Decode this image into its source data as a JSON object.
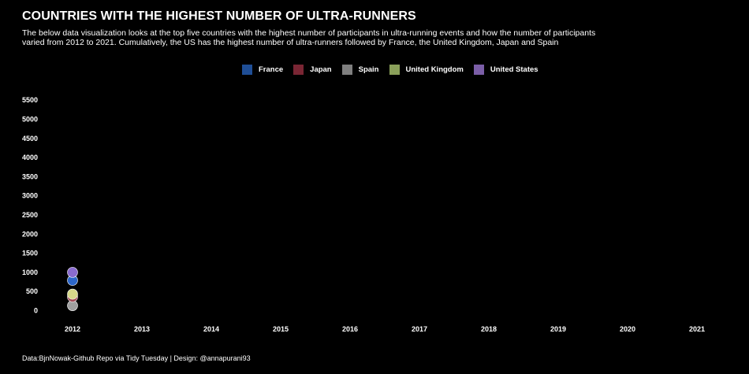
{
  "header": {
    "title": "COUNTRIES WITH THE HIGHEST NUMBER OF ULTRA-RUNNERS",
    "subtitle_line1": "The below data visualization looks at the top five countries with the highest number of participants in ultra-running events and how the number of participants",
    "subtitle_line2": "varied from 2012 to 2021. Cumulatively, the US has the highest number of ultra-runners followed by France, the United Kingdom, Japan and Spain"
  },
  "caption": "Data:BjnNowak-Github Repo via Tidy Tuesday | Design: @annapurani93",
  "legend": [
    {
      "label": "France",
      "color": "#1f4e96"
    },
    {
      "label": "Japan",
      "color": "#7a2634"
    },
    {
      "label": "Spain",
      "color": "#7f7f7f"
    },
    {
      "label": "United Kingdom",
      "color": "#8aa05a"
    },
    {
      "label": "United States",
      "color": "#7b5ea7"
    }
  ],
  "chart_data": {
    "type": "scatter",
    "title": "COUNTRIES WITH THE HIGHEST NUMBER OF ULTRA-RUNNERS",
    "xlabel": "",
    "ylabel": "",
    "x": [
      2012,
      2013,
      2014,
      2015,
      2016,
      2017,
      2018,
      2019,
      2020,
      2021
    ],
    "xticks": [
      "2012",
      "2013",
      "2014",
      "2015",
      "2016",
      "2017",
      "2018",
      "2019",
      "2020",
      "2021"
    ],
    "yticks": [
      0,
      500,
      1000,
      1500,
      2000,
      2500,
      3000,
      3500,
      4000,
      4500,
      5000,
      5500
    ],
    "ylim": [
      -100,
      5700
    ],
    "grid": false,
    "legend_position": "top",
    "points": [
      {
        "series": "United States",
        "x": 2012,
        "y": 990,
        "color": "#8a6ccf"
      },
      {
        "series": "France",
        "x": 2012,
        "y": 780,
        "color": "#2d67c9"
      },
      {
        "series": "United Kingdom",
        "x": 2012,
        "y": 420,
        "color": "#d6d98a"
      },
      {
        "series": "Japan",
        "x": 2012,
        "y": 350,
        "color": "#a14a55"
      },
      {
        "series": "Spain",
        "x": 2012,
        "y": 120,
        "color": "#a0a0a0"
      }
    ]
  }
}
